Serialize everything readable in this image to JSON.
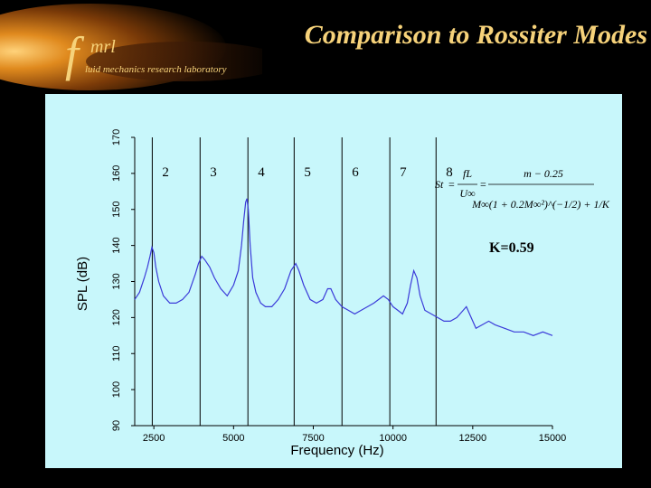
{
  "slide": {
    "title": "Comparison to Rossiter Modes",
    "logo": {
      "letter": "f",
      "abbrev": "mrl",
      "lab_name": "luid mechanics research laboratory"
    }
  },
  "chart_data": {
    "type": "line",
    "xlabel": "Frequency (Hz)",
    "ylabel": "SPL (dB)",
    "xlim": [
      1900,
      15000
    ],
    "ylim": [
      90,
      170
    ],
    "xticks": [
      2500,
      5000,
      7500,
      10000,
      12500,
      15000
    ],
    "xtick_labels": [
      "2500",
      "5000",
      "7500",
      "10000",
      "12500",
      "15000"
    ],
    "yticks": [
      90,
      100,
      110,
      120,
      130,
      140,
      150,
      160,
      170
    ],
    "grid": false,
    "series": [
      {
        "color": "#3b3bd9",
        "x": [
          1900,
          2050,
          2200,
          2300,
          2380,
          2440,
          2500,
          2560,
          2650,
          2800,
          3000,
          3200,
          3400,
          3600,
          3800,
          3900,
          4000,
          4100,
          4250,
          4400,
          4600,
          4800,
          5000,
          5150,
          5250,
          5320,
          5380,
          5420,
          5460,
          5520,
          5600,
          5700,
          5850,
          6000,
          6200,
          6400,
          6600,
          6800,
          6950,
          7050,
          7200,
          7400,
          7600,
          7800,
          7950,
          8050,
          8200,
          8400,
          8600,
          8800,
          9000,
          9200,
          9400,
          9550,
          9700,
          9850,
          10000,
          10150,
          10300,
          10450,
          10550,
          10650,
          10750,
          10850,
          11000,
          11200,
          11400,
          11600,
          11800,
          12000,
          12200,
          12300,
          12450,
          12600,
          12800,
          13000,
          13200,
          13500,
          13800,
          14100,
          14400,
          14700,
          15000
        ],
        "y": [
          125,
          127,
          131,
          134,
          137,
          139.5,
          138,
          134,
          130,
          126,
          124,
          124,
          125,
          127,
          132,
          135,
          137,
          136,
          134,
          131,
          128,
          126,
          129,
          133,
          140,
          147,
          152,
          153,
          150,
          140,
          131,
          127,
          124,
          123,
          123,
          125,
          128,
          133,
          135,
          133,
          129,
          125,
          124,
          125,
          128,
          128,
          125,
          123,
          122,
          121,
          122,
          123,
          124,
          125,
          126,
          125,
          123,
          122,
          121,
          124,
          129,
          133,
          131,
          126,
          122,
          121,
          120,
          119,
          119,
          120,
          122,
          123,
          120,
          117,
          118,
          119,
          118,
          117,
          116,
          116,
          115,
          116,
          115
        ]
      }
    ],
    "rossiter_modes": {
      "labels": [
        "2",
        "3",
        "4",
        "5",
        "6",
        "7",
        "8"
      ],
      "frequencies": [
        2450,
        3950,
        5450,
        6900,
        8400,
        9900,
        11350
      ]
    },
    "annotations": {
      "equation": {
        "lhs": "St",
        "numerator_left": "fL",
        "denominator_left": "U∞",
        "numerator_right": "m − 0.25",
        "denominator_right": "M∞(1 + 0.2M∞²)^(−1/2) + 1/K"
      },
      "k_value": "K=0.59"
    }
  }
}
